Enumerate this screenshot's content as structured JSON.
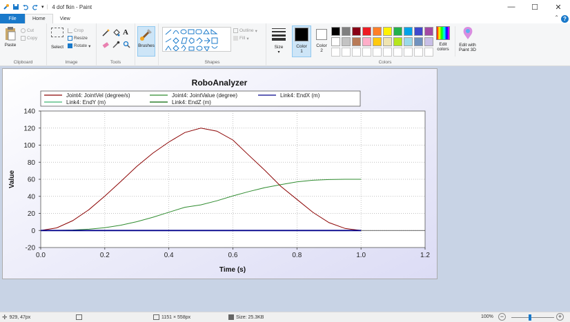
{
  "window": {
    "title": "4 dof fkin - Paint",
    "minimize": "—",
    "maximize": "☐",
    "close": "✕"
  },
  "tabs": [
    {
      "label": "File"
    },
    {
      "label": "Home"
    },
    {
      "label": "View"
    }
  ],
  "ribbon": {
    "clipboard": {
      "label": "Clipboard",
      "paste": "Paste",
      "cut": "Cut",
      "copy": "Copy"
    },
    "image": {
      "label": "Image",
      "select": "Select",
      "crop": "Crop",
      "resize": "Resize",
      "rotate": "Rotate"
    },
    "tools": {
      "label": "Tools"
    },
    "brushes": {
      "label": "Brushes"
    },
    "shapes": {
      "label": "Shapes",
      "outline": "Outline",
      "fill": "Fill"
    },
    "size": {
      "label": "Size"
    },
    "color1": {
      "label": "Color",
      "num": "1"
    },
    "color2": {
      "label": "Color",
      "num": "2"
    },
    "colors": {
      "label": "Colors"
    },
    "edit_colors": {
      "line1": "Edit",
      "line2": "colors"
    },
    "paint3d": {
      "line1": "Edit with",
      "line2": "Paint 3D"
    },
    "palette_row1": [
      "#000000",
      "#7f7f7f",
      "#880015",
      "#ed1c24",
      "#ff7f27",
      "#fff200",
      "#22b14c",
      "#00a2e8",
      "#3f48cc",
      "#a349a4"
    ],
    "palette_row2": [
      "#ffffff",
      "#c3c3c3",
      "#b97a57",
      "#ffaec9",
      "#ffc90e",
      "#efe4b0",
      "#b5e61d",
      "#99d9ea",
      "#7092be",
      "#c8bfe7"
    ]
  },
  "chart_data": {
    "type": "line",
    "title": "RoboAnalyzer",
    "xlabel": "Time (s)",
    "ylabel": "Value",
    "xlim": [
      0,
      1.2
    ],
    "ylim": [
      -20,
      140
    ],
    "xticks": [
      "0.0",
      "0.2",
      "0.4",
      "0.6",
      "0.8",
      "1.0",
      "1.2"
    ],
    "yticks": [
      "-20",
      "0",
      "20",
      "40",
      "60",
      "80",
      "100",
      "120",
      "140"
    ],
    "legend": "top",
    "grid": true,
    "series": [
      {
        "name": "Joint4: JointVel (degree/s)",
        "color": "#8b0000",
        "x": [
          0,
          0.05,
          0.1,
          0.15,
          0.2,
          0.25,
          0.3,
          0.35,
          0.4,
          0.45,
          0.5,
          0.55,
          0.6,
          0.65,
          0.7,
          0.75,
          0.8,
          0.85,
          0.9,
          0.95,
          1.0
        ],
        "y": [
          0,
          3,
          11.5,
          24.2,
          40.2,
          57.3,
          75.2,
          90.6,
          103.6,
          114.8,
          120,
          116.4,
          106,
          88,
          70.4,
          51.6,
          36.4,
          21.2,
          9.2,
          2.4,
          0
        ]
      },
      {
        "name": "Joint4: JointValue (degree)",
        "color": "#2e8b2e",
        "x": [
          0,
          0.05,
          0.1,
          0.15,
          0.2,
          0.25,
          0.3,
          0.35,
          0.4,
          0.45,
          0.5,
          0.55,
          0.6,
          0.65,
          0.7,
          0.75,
          0.8,
          0.85,
          0.9,
          0.95,
          1.0
        ],
        "y": [
          0,
          0.1,
          0.5,
          1.5,
          3.3,
          6.2,
          10.3,
          15.5,
          21.4,
          27.2,
          30,
          34.8,
          40.5,
          45.6,
          50.2,
          53.8,
          57.0,
          58.9,
          59.7,
          60,
          60
        ]
      },
      {
        "name": "Link4: EndX (m)",
        "color": "#00008b",
        "x": [
          0,
          0.2,
          0.4,
          0.6,
          0.8,
          1.0
        ],
        "y": [
          0,
          0,
          0,
          0,
          0,
          0
        ]
      },
      {
        "name": "Link4: EndY (m)",
        "color": "#3cb371",
        "x": [
          0,
          0.2,
          0.4,
          0.6,
          0.8,
          1.0
        ],
        "y": [
          0,
          0,
          0,
          0,
          0,
          0
        ]
      },
      {
        "name": "Link4: EndZ (m)",
        "color": "#006400",
        "x": [
          0,
          0.2,
          0.4,
          0.6,
          0.8,
          1.0
        ],
        "y": [
          0,
          0,
          0,
          0,
          0,
          0
        ]
      }
    ]
  },
  "status": {
    "cursor": "929, 47px",
    "dimensions": "1151 × 558px",
    "size": "Size: 25.3KB",
    "zoom": "100%"
  }
}
